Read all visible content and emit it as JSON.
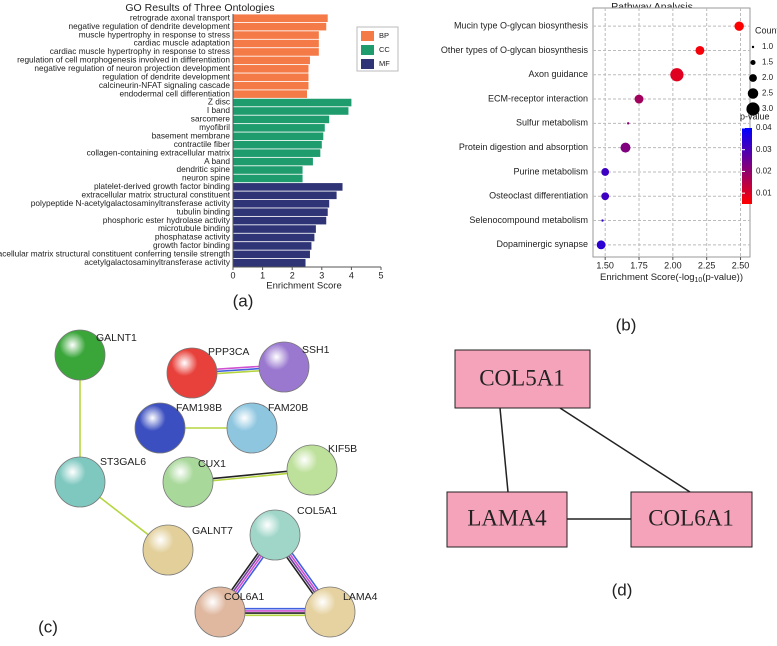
{
  "chart_data": [
    {
      "type": "bar",
      "orientation": "horizontal",
      "title": "GO Results of Three Ontologies",
      "xlabel": "Enrichment Score",
      "xlim": [
        0,
        5
      ],
      "xticks": [
        0,
        1,
        2,
        3,
        4,
        5
      ],
      "legend": "upper right",
      "series": [
        {
          "name": "BP",
          "color": "#f47b48",
          "categories": [
            "retrograde axonal transport",
            "negative regulation of dendrite development",
            "muscle hypertrophy in response to stress",
            "cardiac muscle adaptation",
            "cardiac muscle hypertrophy in response to stress",
            "regulation of cell morphogenesis involved in differentiation",
            "negative regulation of neuron projection development",
            "regulation of dendrite development",
            "calcineurin-NFAT signaling cascade",
            "endodermal cell differentiation"
          ],
          "values": [
            3.2,
            3.15,
            2.9,
            2.9,
            2.9,
            2.6,
            2.55,
            2.55,
            2.55,
            2.5
          ]
        },
        {
          "name": "CC",
          "color": "#1f9c6e",
          "categories": [
            "Z disc",
            "I band",
            "sarcomere",
            "myofibril",
            "basement membrane",
            "contractile fiber",
            "collagen-containing extracellular matrix",
            "A band",
            "dendritic spine",
            "neuron spine"
          ],
          "values": [
            4.0,
            3.9,
            3.25,
            3.1,
            3.05,
            3.0,
            2.95,
            2.7,
            2.35,
            2.35
          ]
        },
        {
          "name": "MF",
          "color": "#2e3475",
          "categories": [
            "platelet-derived growth factor binding",
            "extracellular matrix structural constituent",
            "polypeptide N-acetylgalactosaminyltransferase activity",
            "tubulin binding",
            "phosphoric ester hydrolase activity",
            "microtubule binding",
            "phosphatase activity",
            "growth factor binding",
            "extracellular matrix structural constituent conferring tensile strength",
            "acetylgalactosaminyltransferase activity"
          ],
          "values": [
            3.7,
            3.5,
            3.25,
            3.2,
            3.15,
            2.8,
            2.75,
            2.65,
            2.6,
            2.45
          ]
        }
      ]
    },
    {
      "type": "scatter",
      "title": "Pathway Analysis",
      "xlabel_parts": [
        "Enrichment Score(-log",
        "10",
        "(p-value))"
      ],
      "categories": [
        "Mucin type O-glycan biosynthesis",
        "Other types of O-glycan biosynthesis",
        "Axon guidance",
        "ECM-receptor interaction",
        "Sulfur metabolism",
        "Protein digestion and absorption",
        "Purine metabolism",
        "Osteoclast differentiation",
        "Selenocompound metabolism",
        "Dopaminergic synapse"
      ],
      "values": [
        2.49,
        2.2,
        2.03,
        1.75,
        1.67,
        1.65,
        1.5,
        1.5,
        1.48,
        1.47
      ],
      "sizes": [
        2.3,
        2.2,
        3.0,
        2.2,
        1.0,
        2.4,
        2.0,
        2.0,
        1.0,
        2.2
      ],
      "pvalues": [
        0.0032,
        0.0063,
        0.0093,
        0.0178,
        0.0214,
        0.0224,
        0.0316,
        0.0316,
        0.0331,
        0.0339
      ],
      "xlim": [
        1.41,
        2.57
      ],
      "xticks": [
        {
          "value": 1.5,
          "label": "1.50"
        },
        {
          "value": 1.75,
          "label": "1.75"
        },
        {
          "value": 2,
          "label": "2.00"
        },
        {
          "value": 2.25,
          "label": "2.25"
        },
        {
          "value": 2.5,
          "label": "2.50"
        }
      ],
      "grid": true,
      "size_legend_title": "Count",
      "size_legend": [
        {
          "value": 1,
          "label": "1.0"
        },
        1.5,
        {
          "value": 2,
          "label": "2.0"
        },
        2.5,
        {
          "value": 3,
          "label": "3.0"
        }
      ],
      "color_legend_title": "p-value",
      "colormap": [
        "#ff0000",
        "#0000ff"
      ],
      "colorlim": [
        0.005,
        0.04
      ],
      "colorticks": [
        0.01,
        0.02,
        0.03,
        0.04
      ]
    }
  ],
  "network_c": {
    "nodes": [
      "GALNT1",
      "PPP3CA",
      "SSH1",
      "FAM198B",
      "FAM20B",
      "CUX1",
      "KIF5B",
      "ST3GAL6",
      "GALNT7",
      "COL5A1",
      "COL6A1",
      "LAMA4"
    ]
  },
  "network_d": {
    "nodes": [
      "COL5A1",
      "LAMA4",
      "COL6A1"
    ]
  },
  "panel_labels": [
    "(a)",
    "(b)",
    "(c)",
    "(d)"
  ]
}
